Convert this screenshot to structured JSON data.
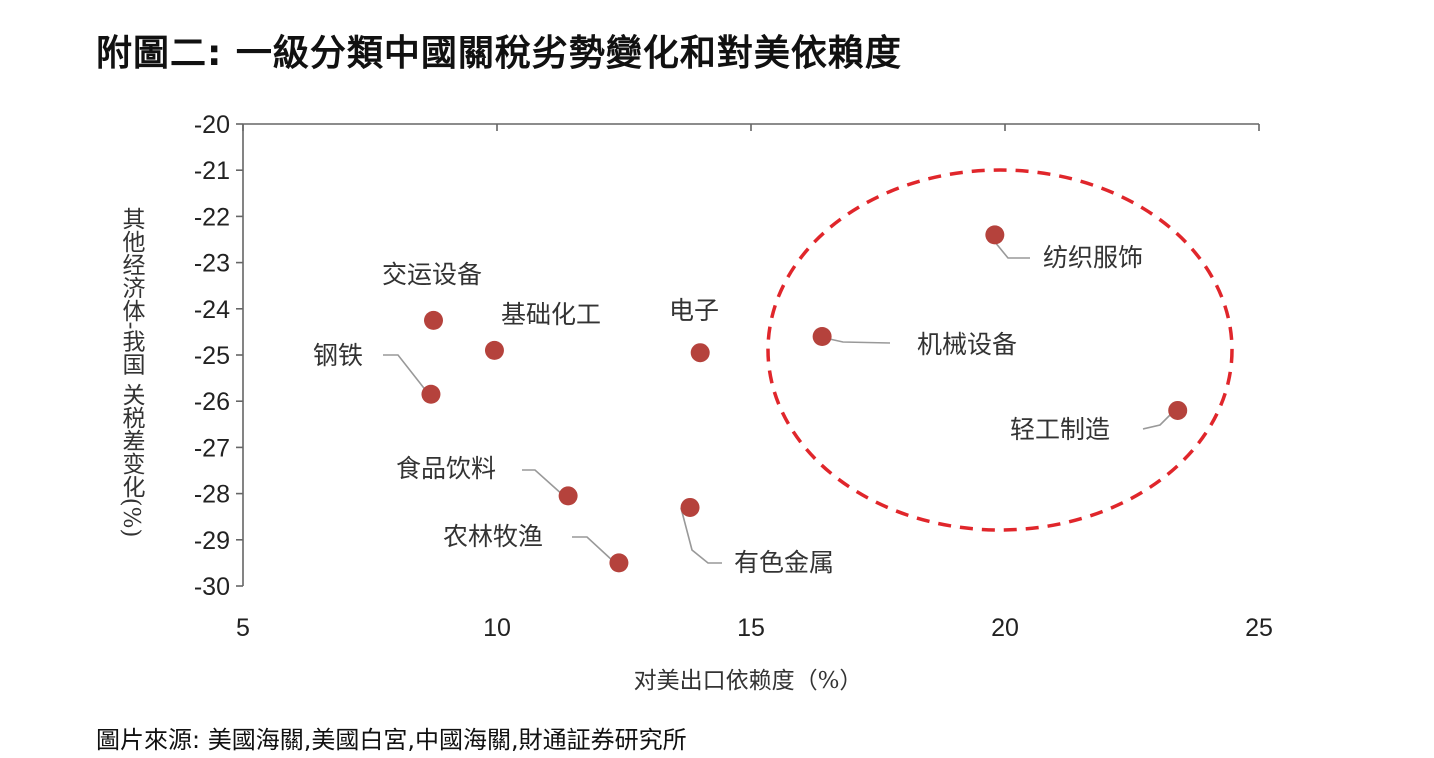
{
  "title": "附圖二: 一級分類中國關稅劣勢變化和對美依賴度",
  "source": "圖片來源: 美國海關,美國白宮,中國海關,財通証券研究所",
  "colors": {
    "point": "#b5423c",
    "highlight": "#e0262b",
    "axis": "#666666",
    "leader": "#999999"
  },
  "chart_data": {
    "type": "scatter",
    "xlabel": "对美出口依赖度（%）",
    "ylabel": "其他经济体-我国 关税差变化(%)",
    "xlim": [
      5,
      25
    ],
    "ylim": [
      -30,
      -20
    ],
    "xticks": [
      5,
      10,
      15,
      20,
      25
    ],
    "yticks": [
      -20,
      -21,
      -22,
      -23,
      -24,
      -25,
      -26,
      -27,
      -28,
      -29,
      -30
    ],
    "grid": false,
    "points": [
      {
        "label": "交运设备",
        "x": 8.75,
        "y": -24.25
      },
      {
        "label": "基础化工",
        "x": 9.95,
        "y": -24.9
      },
      {
        "label": "钢铁",
        "x": 8.7,
        "y": -25.85
      },
      {
        "label": "电子",
        "x": 14.0,
        "y": -24.95
      },
      {
        "label": "食品饮料",
        "x": 11.4,
        "y": -28.05
      },
      {
        "label": "有色金属",
        "x": 13.8,
        "y": -28.3
      },
      {
        "label": "农林牧渔",
        "x": 12.4,
        "y": -29.5
      },
      {
        "label": "纺织服饰",
        "x": 19.8,
        "y": -22.4
      },
      {
        "label": "机械设备",
        "x": 16.4,
        "y": -24.6
      },
      {
        "label": "轻工制造",
        "x": 23.4,
        "y": -26.2
      }
    ],
    "annotations": [
      {
        "type": "dashed-ellipse",
        "encloses": [
          "纺织服饰",
          "机械设备",
          "轻工制造"
        ]
      }
    ]
  }
}
